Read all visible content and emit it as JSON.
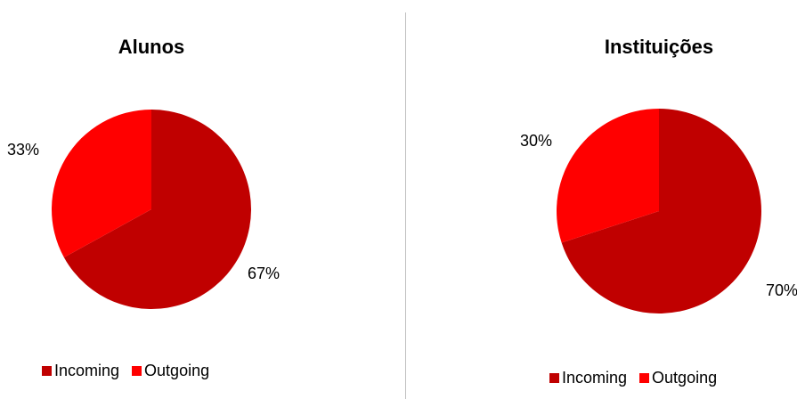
{
  "colors": {
    "incoming": "#c00000",
    "outgoing": "#ff0000"
  },
  "chart_data": [
    {
      "type": "pie",
      "title": "Alunos",
      "categories": [
        "Incoming",
        "Outgoing"
      ],
      "values": [
        67,
        33
      ],
      "labels": [
        "67%",
        "33%"
      ],
      "legend": "bottom"
    },
    {
      "type": "pie",
      "title": "Instituições",
      "categories": [
        "Incoming",
        "Outgoing"
      ],
      "values": [
        70,
        30
      ],
      "labels": [
        "70%",
        "30%"
      ],
      "legend": "bottom"
    }
  ]
}
